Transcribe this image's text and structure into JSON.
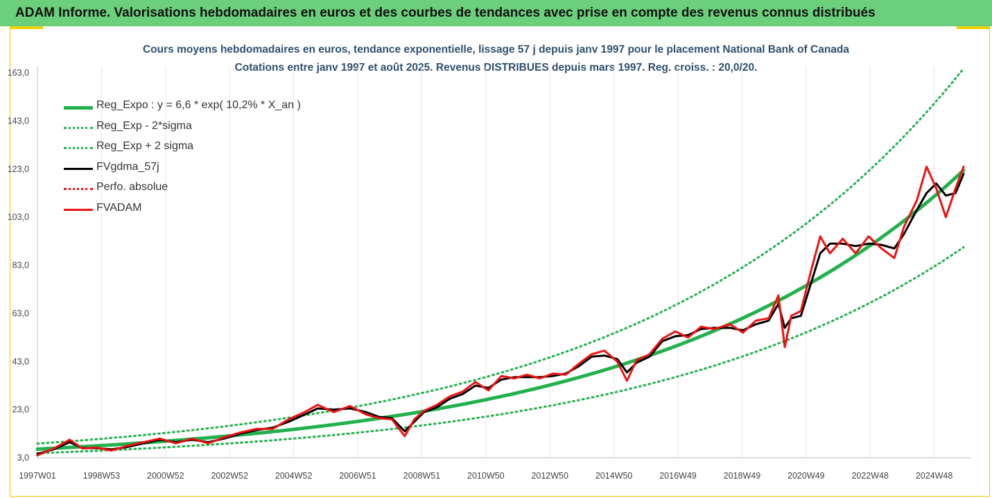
{
  "header": {
    "title": "ADAM Informe. Valorisations hebdomadaires en euros et des courbes de tendances avec prise en compte des revenus connus distribués"
  },
  "colors": {
    "banner": "#6ccf7c",
    "trend": "#22b14c",
    "fvgdma": "#000000",
    "fvadam": "#ee1111",
    "perf": "#ee1111"
  },
  "chart_data": {
    "type": "line",
    "title": "Cours moyens hebdomadaires en euros, tendance exponentielle, lissage 57 j depuis janv 1997 pour le placement National Bank of Canada",
    "subtitle": "Cotations entre janv 1997 et août 2025. Revenus DISTRIBUES depuis mars 1997. Reg. croiss. : 20,0/20.",
    "x_tick_labels": [
      "1997W01",
      "1998W53",
      "2000W52",
      "2002W52",
      "2004W52",
      "2006W51",
      "2008W51",
      "2010W50",
      "2012W50",
      "2014W50",
      "2016W49",
      "2018W49",
      "2020W49",
      "2022W48",
      "2024W48"
    ],
    "y_tick_labels": [
      "3,0",
      "23,0",
      "43,0",
      "63,0",
      "83,0",
      "103,0",
      "123,0",
      "143,0",
      "163,0"
    ],
    "ylim": [
      3,
      168
    ],
    "xlim": [
      1997.0,
      2025.75
    ],
    "grid": "vertical",
    "legend_position": "top-left",
    "legend": [
      {
        "key": "reg_expo",
        "label": "Reg_Expo : y = 6,6 * exp( 10,2% *  X_an )",
        "color": "#22b14c",
        "style": "solid"
      },
      {
        "key": "reg_minus",
        "label": "Reg_Exp - 2*sigma",
        "color": "#22b14c",
        "style": "dotted"
      },
      {
        "key": "reg_plus",
        "label": "Reg_Exp + 2 sigma",
        "color": "#22b14c",
        "style": "dotted"
      },
      {
        "key": "fvgdma",
        "label": "FVgdma_57j",
        "color": "#000000",
        "style": "solid"
      },
      {
        "key": "perf",
        "label": "Perfo. absolue",
        "color": "#ee1111",
        "style": "dotted"
      },
      {
        "key": "fvadam",
        "label": "FVADAM",
        "color": "#ee1111",
        "style": "solid"
      }
    ],
    "series": [
      {
        "name": "Reg_Expo : y = 6,6 * exp( 10,2% *  X_an )",
        "x": [
          1997.0,
          1999.0,
          2001.0,
          2003.0,
          2005.0,
          2007.0,
          2009.0,
          2011.0,
          2013.0,
          2015.0,
          2017.0,
          2019.0,
          2021.0,
          2023.0,
          2025.75
        ],
        "values": [
          6.6,
          8.1,
          9.9,
          12.1,
          14.9,
          18.2,
          22.3,
          27.4,
          33.5,
          41.1,
          50.3,
          61.7,
          75.6,
          92.6,
          122.5
        ]
      },
      {
        "name": "Reg_Exp - 2*sigma",
        "x": [
          1997.0,
          1999.0,
          2001.0,
          2003.0,
          2005.0,
          2007.0,
          2009.0,
          2011.0,
          2013.0,
          2015.0,
          2017.0,
          2019.0,
          2021.0,
          2023.0,
          2025.75
        ],
        "values": [
          4.9,
          6.0,
          7.3,
          8.9,
          11.0,
          13.4,
          16.5,
          20.2,
          24.8,
          30.4,
          37.2,
          45.6,
          55.9,
          68.5,
          90.5
        ]
      },
      {
        "name": "Reg_Exp + 2 sigma",
        "x": [
          1997.0,
          1999.0,
          2001.0,
          2003.0,
          2005.0,
          2007.0,
          2009.0,
          2011.0,
          2013.0,
          2015.0,
          2017.0,
          2019.0,
          2021.0,
          2023.0,
          2025.75
        ],
        "values": [
          8.9,
          10.9,
          13.3,
          16.3,
          20.0,
          24.5,
          30.0,
          36.8,
          45.1,
          55.3,
          67.7,
          82.9,
          101.6,
          124.5,
          164.8
        ]
      },
      {
        "name": "FVgdma_57j",
        "x": [
          1997.0,
          1997.5,
          1998.0,
          1998.4,
          1998.8,
          1999.3,
          1999.8,
          2000.3,
          2000.8,
          2001.3,
          2001.8,
          2002.3,
          2002.8,
          2003.3,
          2003.8,
          2004.3,
          2004.8,
          2005.3,
          2005.7,
          2006.2,
          2006.7,
          2007.2,
          2007.6,
          2008.0,
          2008.4,
          2008.7,
          2009.0,
          2009.4,
          2009.8,
          2010.2,
          2010.6,
          2011.0,
          2011.4,
          2011.8,
          2012.2,
          2012.6,
          2013.0,
          2013.4,
          2013.8,
          2014.2,
          2014.6,
          2015.0,
          2015.3,
          2015.6,
          2016.0,
          2016.4,
          2016.8,
          2017.2,
          2017.6,
          2018.0,
          2018.5,
          2018.9,
          2019.3,
          2019.7,
          2020.0,
          2020.2,
          2020.4,
          2020.7,
          2021.0,
          2021.3,
          2021.6,
          2022.0,
          2022.4,
          2022.8,
          2023.2,
          2023.6,
          2023.9,
          2024.3,
          2024.6,
          2024.9,
          2025.2,
          2025.5,
          2025.75
        ],
        "values": [
          4.6,
          6.5,
          9.5,
          7.0,
          7.0,
          6.5,
          7.5,
          9.0,
          10.5,
          9.5,
          10.5,
          9.5,
          11.0,
          13.0,
          14.5,
          15.5,
          18.0,
          21.0,
          23.5,
          23.0,
          23.5,
          22.0,
          20.0,
          19.5,
          14.0,
          18.0,
          22.0,
          24.0,
          27.5,
          29.5,
          33.0,
          32.0,
          35.5,
          36.5,
          36.5,
          36.5,
          37.0,
          38.0,
          41.0,
          45.0,
          45.5,
          44.0,
          38.5,
          42.5,
          45.0,
          51.5,
          53.5,
          54.0,
          56.5,
          57.0,
          57.0,
          56.0,
          58.5,
          60.0,
          67.0,
          57.0,
          61.0,
          62.0,
          75.0,
          88.0,
          92.0,
          92.0,
          91.0,
          92.0,
          91.5,
          90.0,
          96.0,
          106.0,
          113.0,
          117.0,
          112.0,
          113.0,
          121.0
        ]
      },
      {
        "name": "FVADAM",
        "x": [
          1997.0,
          1997.5,
          1998.0,
          1998.4,
          1998.8,
          1999.3,
          1999.8,
          2000.3,
          2000.8,
          2001.3,
          2001.8,
          2002.3,
          2002.8,
          2003.3,
          2003.8,
          2004.3,
          2004.8,
          2005.3,
          2005.7,
          2006.2,
          2006.7,
          2007.2,
          2007.6,
          2008.0,
          2008.4,
          2008.7,
          2009.0,
          2009.4,
          2009.8,
          2010.2,
          2010.6,
          2011.0,
          2011.4,
          2011.8,
          2012.2,
          2012.6,
          2013.0,
          2013.4,
          2013.8,
          2014.2,
          2014.6,
          2015.0,
          2015.3,
          2015.6,
          2016.0,
          2016.4,
          2016.8,
          2017.2,
          2017.6,
          2018.0,
          2018.5,
          2018.9,
          2019.3,
          2019.7,
          2020.0,
          2020.2,
          2020.4,
          2020.7,
          2021.0,
          2021.3,
          2021.6,
          2022.0,
          2022.4,
          2022.8,
          2023.2,
          2023.6,
          2023.9,
          2024.3,
          2024.6,
          2024.9,
          2025.2,
          2025.5,
          2025.75
        ],
        "values": [
          4.0,
          6.8,
          10.5,
          6.8,
          7.3,
          6.0,
          8.0,
          9.5,
          11.0,
          9.0,
          11.0,
          9.0,
          11.5,
          13.5,
          15.0,
          15.0,
          19.0,
          22.0,
          25.0,
          22.0,
          24.5,
          21.0,
          19.5,
          19.0,
          12.0,
          19.0,
          22.5,
          25.0,
          28.5,
          30.5,
          34.5,
          31.0,
          37.0,
          36.0,
          37.5,
          36.0,
          38.0,
          37.5,
          42.0,
          46.0,
          47.5,
          43.0,
          35.0,
          43.5,
          46.0,
          52.5,
          55.5,
          53.0,
          57.5,
          56.5,
          58.5,
          55.0,
          60.0,
          61.0,
          70.5,
          49.0,
          62.0,
          64.0,
          80.0,
          95.0,
          88.0,
          94.0,
          88.0,
          95.0,
          90.0,
          86.0,
          99.0,
          110.0,
          124.0,
          115.0,
          103.0,
          115.0,
          124.0
        ]
      }
    ]
  }
}
